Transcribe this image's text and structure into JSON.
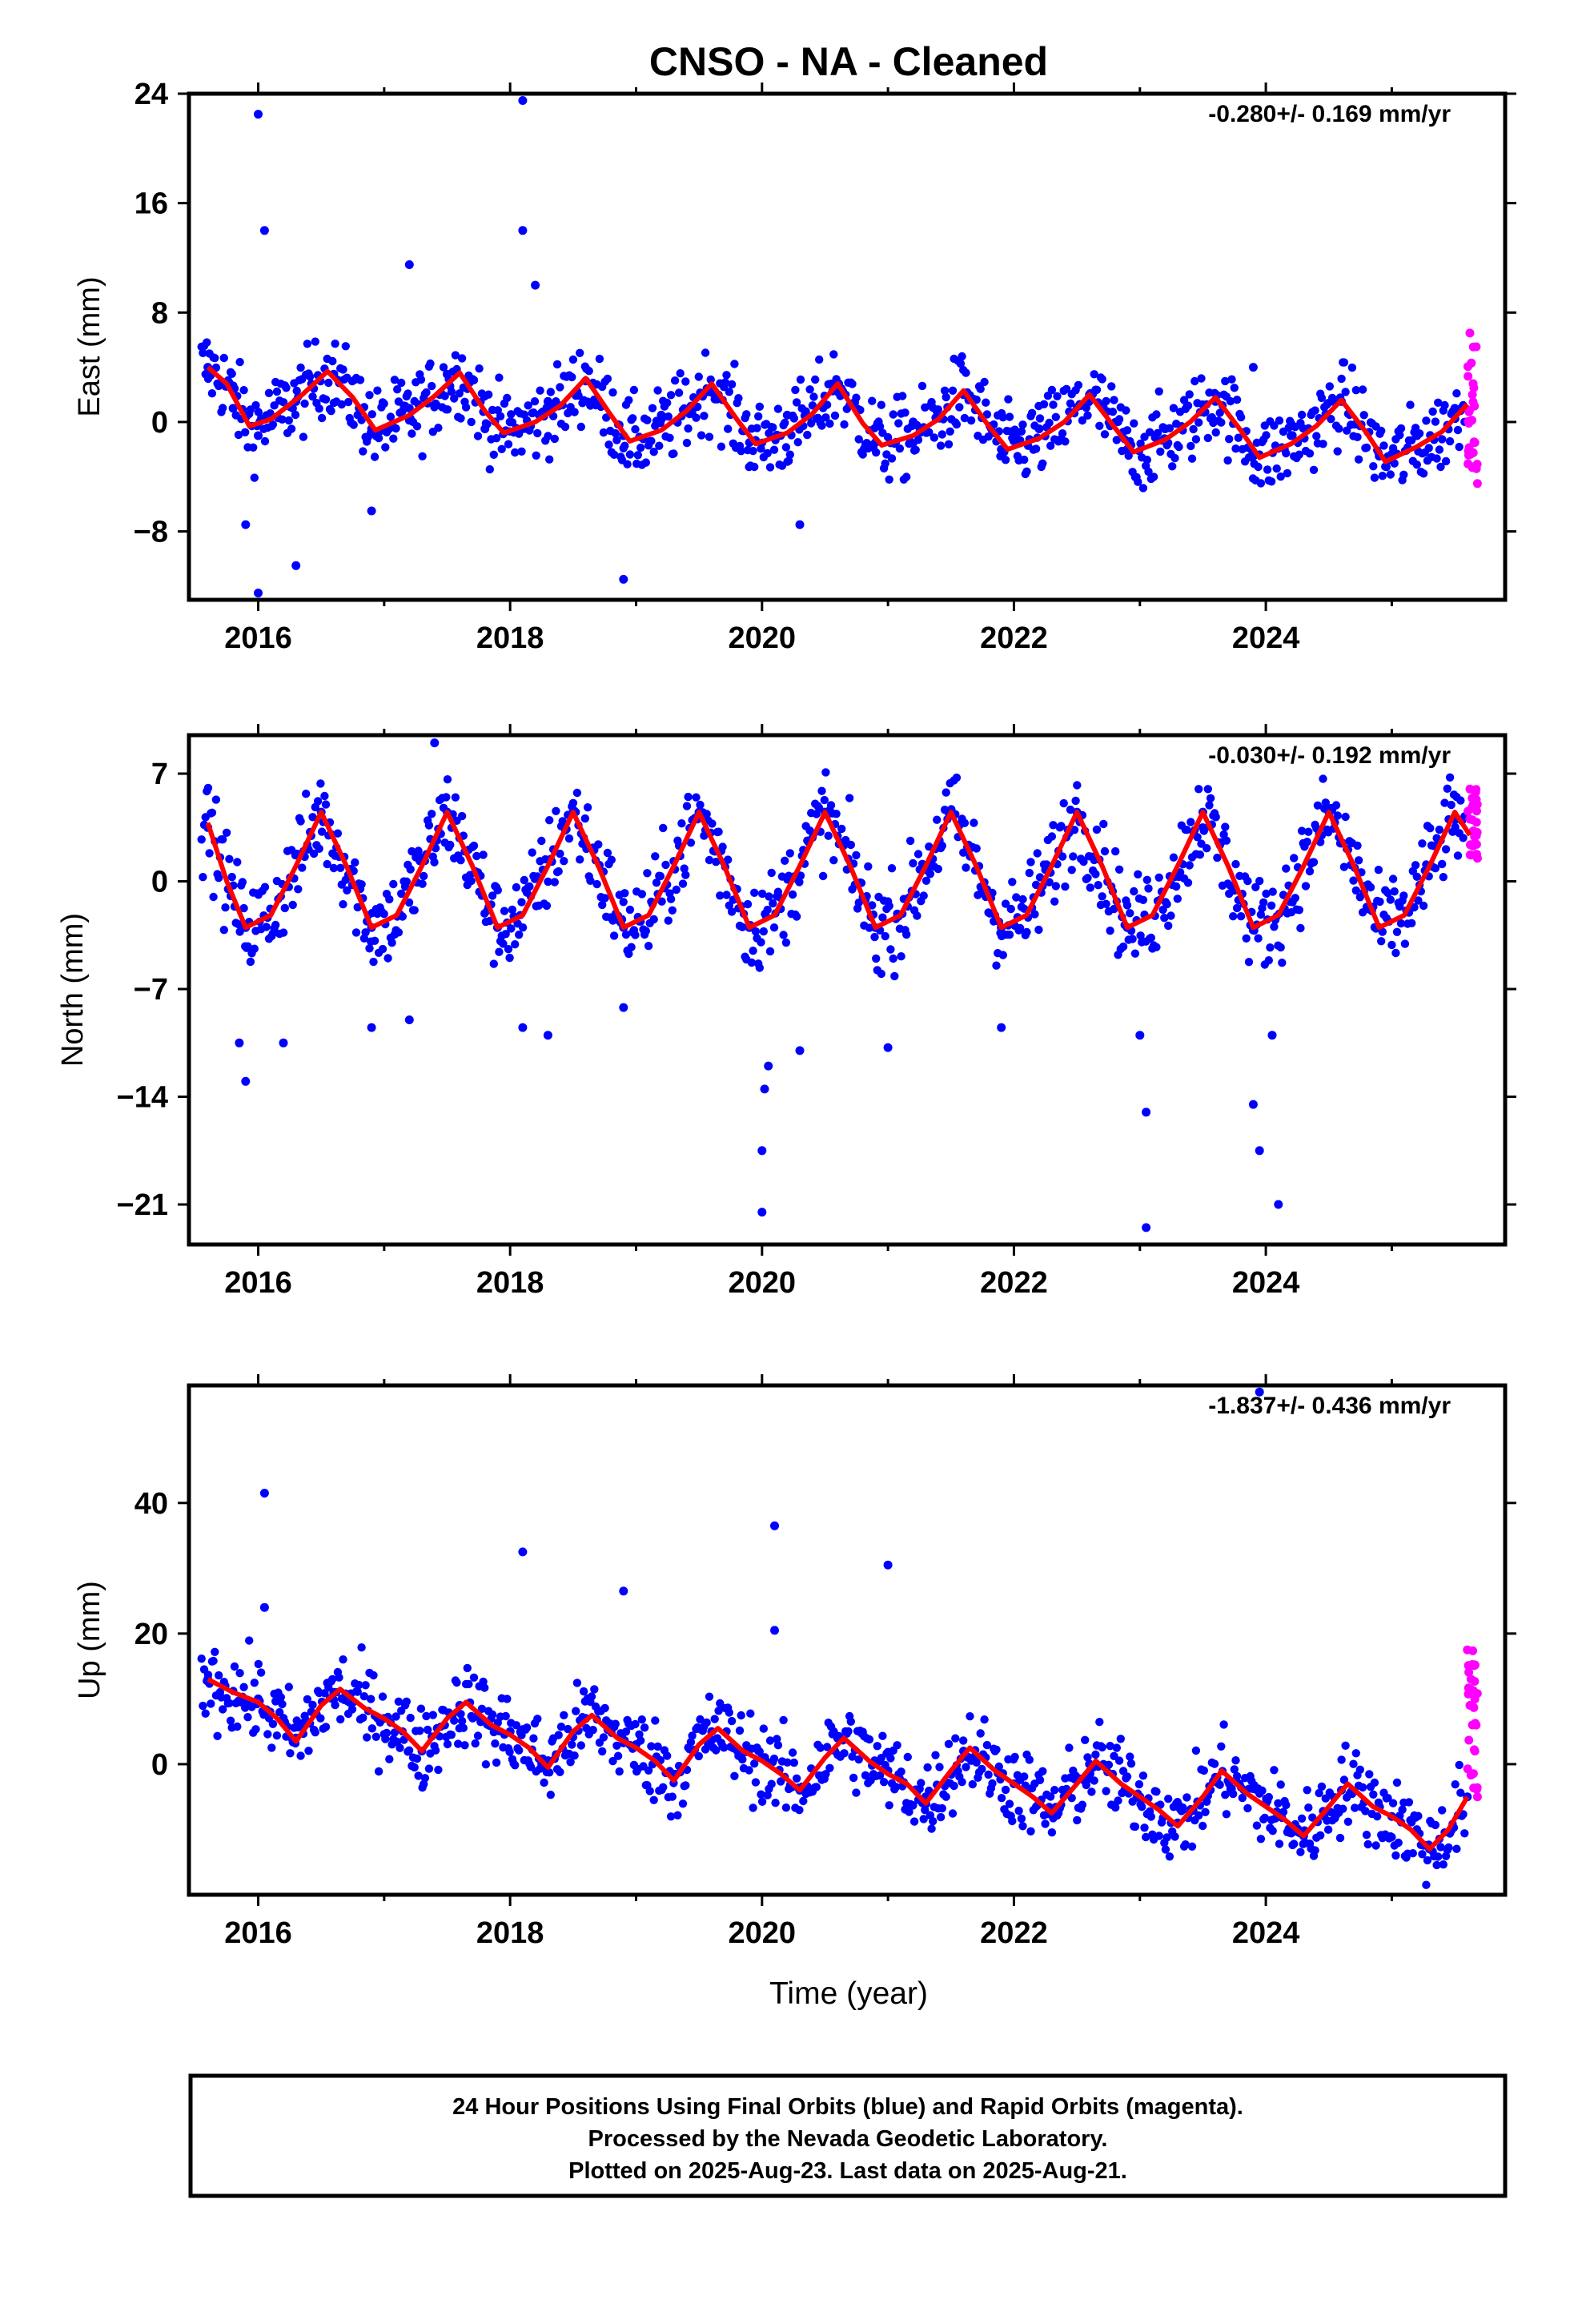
{
  "title": "CNSO  - NA - Cleaned",
  "x_axis": {
    "label": "Time (year)",
    "ticks": [
      "2016",
      "2018",
      "2020",
      "2022",
      "2024"
    ],
    "range": [
      2015.45,
      2025.9
    ]
  },
  "panels": [
    {
      "ylabel": "East (mm)",
      "rate": "-0.280+/- 0.169 mm/yr",
      "yticks": [
        "24",
        "16",
        "8",
        "0",
        "−8"
      ],
      "ytick_values": [
        24,
        16,
        8,
        0,
        -8
      ],
      "ylim": [
        -13,
        24
      ]
    },
    {
      "ylabel": "North (mm)",
      "rate": "-0.030+/- 0.192 mm/yr",
      "yticks": [
        "7",
        "0",
        "−7",
        "−14",
        "−21"
      ],
      "ytick_values": [
        7,
        0,
        -7,
        -14,
        -21
      ],
      "ylim": [
        -23.6,
        9.5
      ]
    },
    {
      "ylabel": "Up (mm)",
      "rate": "-1.837+/- 0.436 mm/yr",
      "yticks": [
        "40",
        "20",
        "0"
      ],
      "ytick_values": [
        40,
        20,
        0
      ],
      "ylim": [
        -20,
        58
      ]
    }
  ],
  "footer": {
    "line1": "24 Hour Positions Using Final Orbits (blue) and Rapid Orbits (magenta).",
    "line2": "Processed by the Nevada Geodetic Laboratory.",
    "line3": "Plotted on 2025-Aug-23. Last data on 2025-Aug-21."
  },
  "colors": {
    "final_orbits": "#0000ff",
    "rapid_orbits": "#ff00ff",
    "model_fit": "#ff0000",
    "frame": "#000000"
  },
  "chart_data": [
    {
      "type": "scatter",
      "panel": "East",
      "ylabel": "East (mm)",
      "xlabel": "",
      "xlim": [
        2015.45,
        2025.9
      ],
      "ylim": [
        -13,
        24
      ],
      "series": [
        {
          "name": "Final Orbits (blue)",
          "color": "#0000ff",
          "style": "dots",
          "approx": true,
          "x": [
            2015.6,
            2015.8,
            2016.0,
            2016.3,
            2016.6,
            2016.9,
            2017.2,
            2017.5,
            2017.8,
            2018.0,
            2018.3,
            2018.6,
            2018.9,
            2019.2,
            2019.6,
            2019.9,
            2020.2,
            2020.6,
            2020.9,
            2021.2,
            2021.6,
            2021.9,
            2022.2,
            2022.6,
            2022.9,
            2023.2,
            2023.6,
            2023.9,
            2024.2,
            2024.6,
            2024.9,
            2025.2,
            2025.5
          ],
          "y": [
            4,
            1,
            -1,
            1.5,
            3.5,
            -0.5,
            1,
            3.5,
            -0.5,
            0,
            1.5,
            3,
            -1,
            0.5,
            2.5,
            -1.5,
            0.5,
            2.5,
            -1.5,
            0,
            2,
            -2,
            -0.5,
            2,
            -2,
            -0.5,
            1.5,
            -2.5,
            -1,
            1.5,
            -2.5,
            -1,
            1
          ]
        },
        {
          "name": "Final Orbits outliers",
          "color": "#0000ff",
          "style": "dots",
          "approx": true,
          "x": [
            2016.0,
            2016.05,
            2018.1,
            2018.1,
            2016.3,
            2016.0,
            2018.9,
            2017.2,
            2015.9,
            2016.9,
            2018.2,
            2020.3,
            2023.9
          ],
          "y": [
            22.5,
            14,
            23.5,
            14,
            -10.5,
            -12.5,
            -11.5,
            11.5,
            -7.5,
            -6.5,
            10,
            -7.5,
            4
          ]
        },
        {
          "name": "Rapid Orbits (magenta)",
          "color": "#ff00ff",
          "style": "dots",
          "approx": true,
          "x": [
            2025.62,
            2025.64,
            2025.66,
            2025.68
          ],
          "y": [
            6.5,
            2,
            -1.5,
            -4.5
          ]
        },
        {
          "name": "Model fit",
          "color": "#ff0000",
          "style": "line",
          "approx": true,
          "x": [
            2015.6,
            2015.75,
            2015.93,
            2016.1,
            2016.35,
            2016.55,
            2016.75,
            2016.93,
            2017.2,
            2017.4,
            2017.6,
            2017.8,
            2017.95,
            2018.2,
            2018.4,
            2018.6,
            2018.8,
            2018.95,
            2019.2,
            2019.4,
            2019.6,
            2019.8,
            2019.95,
            2020.2,
            2020.4,
            2020.6,
            2020.8,
            2020.95,
            2021.2,
            2021.4,
            2021.6,
            2021.8,
            2021.95,
            2022.2,
            2022.4,
            2022.6,
            2022.8,
            2022.95,
            2023.2,
            2023.4,
            2023.6,
            2023.8,
            2023.95,
            2024.2,
            2024.4,
            2024.6,
            2024.8,
            2024.95,
            2025.2,
            2025.4,
            2025.6
          ],
          "y": [
            4,
            2.8,
            -0.3,
            0.2,
            2,
            3.7,
            1.8,
            -0.6,
            0.5,
            1.9,
            3.6,
            0.8,
            -0.8,
            0,
            1.2,
            3.2,
            0.5,
            -1.4,
            -0.6,
            0.8,
            2.8,
            0.2,
            -1.6,
            -0.8,
            0.6,
            2.8,
            -0.1,
            -1.7,
            -1,
            0.2,
            2.3,
            -0.3,
            -2,
            -1.2,
            0,
            2,
            -0.4,
            -2.2,
            -1.3,
            0,
            1.8,
            -0.6,
            -2.6,
            -1.6,
            -0.3,
            1.6,
            -0.8,
            -2.9,
            -1.8,
            -0.7,
            1.3
          ]
        }
      ]
    },
    {
      "type": "scatter",
      "panel": "North",
      "ylabel": "North (mm)",
      "xlabel": "",
      "xlim": [
        2015.45,
        2025.9
      ],
      "ylim": [
        -23.6,
        9.5
      ],
      "series": [
        {
          "name": "Final Orbits (blue)",
          "color": "#0000ff",
          "style": "dots",
          "approx": true,
          "x": [
            2015.6,
            2015.9,
            2016.5,
            2016.9,
            2017.5,
            2017.9,
            2018.5,
            2018.9,
            2019.5,
            2019.9,
            2020.5,
            2020.9,
            2021.5,
            2021.9,
            2022.5,
            2022.9,
            2023.5,
            2023.9,
            2024.5,
            2024.9,
            2025.5
          ],
          "y": [
            3.5,
            -3,
            4.5,
            -3,
            4.5,
            -3,
            4.5,
            -3,
            4.5,
            -3,
            4.5,
            -3,
            4.5,
            -3,
            4.5,
            -3,
            4.5,
            -3,
            4.5,
            -3,
            4
          ]
        },
        {
          "name": "Final Orbits outliers",
          "color": "#0000ff",
          "style": "dots",
          "approx": true,
          "x": [
            2015.9,
            2015.85,
            2016.2,
            2016.9,
            2017.2,
            2017.4,
            2018.1,
            2018.3,
            2018.9,
            2020.0,
            2020.0,
            2020.02,
            2020.05,
            2020.3,
            2021.0,
            2021.9,
            2023.05,
            2023.05,
            2023.0,
            2023.9,
            2023.95,
            2024.05,
            2024.1
          ],
          "y": [
            -13,
            -10.5,
            -10.5,
            -9.5,
            -9,
            9,
            -9.5,
            -10,
            -8.2,
            -21.5,
            -17.5,
            -13.5,
            -12,
            -11,
            -10.8,
            -9.5,
            -15,
            -22.5,
            -10,
            -14.5,
            -17.5,
            -10,
            -21
          ]
        },
        {
          "name": "Rapid Orbits (magenta)",
          "color": "#ff00ff",
          "style": "dots",
          "approx": true,
          "x": [
            2025.62,
            2025.64,
            2025.66,
            2025.68
          ],
          "y": [
            6,
            4,
            2.5,
            1.5
          ]
        },
        {
          "name": "Model fit",
          "color": "#ff0000",
          "style": "line",
          "approx": true,
          "x": [
            2015.6,
            2015.75,
            2015.9,
            2016.1,
            2016.3,
            2016.5,
            2016.7,
            2016.9,
            2017.1,
            2017.3,
            2017.5,
            2017.7,
            2017.9,
            2018.1,
            2018.3,
            2018.5,
            2018.7,
            2018.9,
            2019.1,
            2019.3,
            2019.5,
            2019.7,
            2019.9,
            2020.1,
            2020.3,
            2020.5,
            2020.7,
            2020.9,
            2021.1,
            2021.3,
            2021.5,
            2021.7,
            2021.9,
            2022.1,
            2022.3,
            2022.5,
            2022.7,
            2022.9,
            2023.1,
            2023.3,
            2023.5,
            2023.7,
            2023.9,
            2024.1,
            2024.3,
            2024.5,
            2024.7,
            2024.9,
            2025.1,
            2025.3,
            2025.5,
            2025.62
          ],
          "y": [
            3.8,
            0,
            -3,
            -2.2,
            1,
            4.5,
            1,
            -3,
            -2.2,
            1,
            4.5,
            1,
            -3,
            -2.2,
            1,
            4.5,
            1,
            -3,
            -2.2,
            1,
            4.5,
            1,
            -3,
            -2.2,
            1,
            4.5,
            1,
            -3,
            -2.2,
            1,
            4.5,
            1,
            -3,
            -2.2,
            1,
            4.5,
            1,
            -3,
            -2.2,
            1,
            4.5,
            1,
            -3,
            -2.2,
            1,
            4.5,
            1,
            -3,
            -2.2,
            1,
            4.5,
            3
          ]
        }
      ]
    },
    {
      "type": "scatter",
      "panel": "Up",
      "ylabel": "Up (mm)",
      "xlabel": "Time (year)",
      "xlim": [
        2015.45,
        2025.9
      ],
      "ylim": [
        -20,
        58
      ],
      "series": [
        {
          "name": "Final Orbits (blue)",
          "color": "#0000ff",
          "style": "dots",
          "approx": true,
          "x": [
            2015.6,
            2016.0,
            2016.3,
            2016.6,
            2017.0,
            2017.3,
            2017.6,
            2018.0,
            2018.3,
            2018.6,
            2019.0,
            2019.3,
            2019.6,
            2020.0,
            2020.3,
            2020.6,
            2021.0,
            2021.3,
            2021.6,
            2022.0,
            2022.3,
            2022.6,
            2023.0,
            2023.3,
            2023.6,
            2024.0,
            2024.3,
            2024.6,
            2025.0,
            2025.3,
            2025.6
          ],
          "y": [
            13,
            10,
            4,
            11,
            7,
            2,
            9,
            5,
            0,
            7,
            3,
            -2,
            5,
            1,
            -4,
            4,
            -1,
            -5,
            2,
            -3,
            -7,
            0,
            -5,
            -9,
            -2,
            -6,
            -11,
            -4,
            -8,
            -13,
            -5
          ]
        },
        {
          "name": "Final Orbits outliers",
          "color": "#0000ff",
          "style": "dots",
          "approx": true,
          "x": [
            2016.05,
            2016.05,
            2018.1,
            2018.9,
            2020.1,
            2020.1,
            2021.0,
            2023.95
          ],
          "y": [
            41.5,
            24,
            32.5,
            26.5,
            36.5,
            20.5,
            30.5,
            57
          ]
        },
        {
          "name": "Rapid Orbits (magenta)",
          "color": "#ff00ff",
          "style": "dots",
          "approx": true,
          "x": [
            2025.6,
            2025.62,
            2025.64,
            2025.66,
            2025.68
          ],
          "y": [
            17.5,
            9,
            6,
            2,
            -5
          ]
        },
        {
          "name": "Model fit",
          "color": "#ff0000",
          "style": "line",
          "approx": true,
          "x": [
            2015.6,
            2015.8,
            2016.0,
            2016.15,
            2016.3,
            2016.5,
            2016.65,
            2016.85,
            2017.0,
            2017.15,
            2017.3,
            2017.5,
            2017.65,
            2017.85,
            2018.0,
            2018.15,
            2018.3,
            2018.5,
            2018.65,
            2018.85,
            2019.0,
            2019.15,
            2019.3,
            2019.5,
            2019.65,
            2019.85,
            2020.0,
            2020.15,
            2020.3,
            2020.5,
            2020.65,
            2020.85,
            2021.0,
            2021.15,
            2021.3,
            2021.5,
            2021.65,
            2021.85,
            2022.0,
            2022.15,
            2022.3,
            2022.5,
            2022.65,
            2022.85,
            2023.0,
            2023.15,
            2023.3,
            2023.5,
            2023.65,
            2023.85,
            2024.0,
            2024.15,
            2024.3,
            2024.5,
            2024.65,
            2024.85,
            2025.0,
            2025.15,
            2025.3,
            2025.45,
            2025.6
          ],
          "y": [
            13,
            11,
            9.5,
            7,
            3.5,
            9,
            11.5,
            8.5,
            7,
            5,
            2,
            7,
            9.5,
            6,
            4.5,
            2.5,
            -0.5,
            5,
            7.5,
            4,
            2.5,
            0.5,
            -2.5,
            3,
            5.5,
            2,
            0.5,
            -1.5,
            -4,
            1,
            4,
            0.5,
            -1.5,
            -3,
            -6,
            -1,
            2.5,
            -1,
            -3,
            -5,
            -7.5,
            -3,
            0.5,
            -3,
            -5,
            -7,
            -9.5,
            -5,
            -1,
            -4.5,
            -6.5,
            -8.5,
            -11,
            -6.5,
            -3,
            -6.5,
            -8,
            -10,
            -13,
            -10,
            -5
          ]
        }
      ]
    }
  ]
}
